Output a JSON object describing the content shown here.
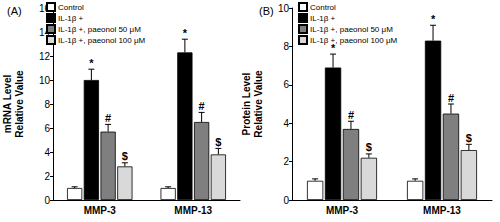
{
  "chart_data": [
    {
      "type": "bar",
      "title": "(A)",
      "y_label": "mRNA Level\nRelative Value",
      "categories": [
        "MMP-3",
        "MMP-13"
      ],
      "ylim": [
        0,
        16
      ],
      "yticks": [
        0,
        2,
        4,
        6,
        8,
        10,
        12,
        14,
        16
      ],
      "grid": false,
      "legend": "top-left",
      "series": [
        {
          "name": "Control",
          "color": "#ffffff",
          "values": [
            1.0,
            1.0
          ],
          "errors": [
            0.1,
            0.1
          ],
          "annotations": [
            null,
            null
          ]
        },
        {
          "name": "IL-1β +",
          "color": "#000000",
          "values": [
            10.0,
            12.3
          ],
          "errors": [
            0.9,
            1.1
          ],
          "annotations": [
            "*",
            "*"
          ]
        },
        {
          "name": "IL-1β +, paeonol 50 μM",
          "color": "#7f7f7f",
          "values": [
            5.7,
            6.5
          ],
          "errors": [
            0.6,
            0.8
          ],
          "annotations": [
            "#",
            "#"
          ]
        },
        {
          "name": "IL-1β +, paeonol 100 μM",
          "color": "#d9d9d9",
          "values": [
            2.8,
            3.8
          ],
          "errors": [
            0.3,
            0.5
          ],
          "annotations": [
            "$",
            "$"
          ]
        }
      ]
    },
    {
      "type": "bar",
      "title": "(B)",
      "y_label": "Protein Level\nRelative Value",
      "categories": [
        "MMP-3",
        "MMP-13"
      ],
      "ylim": [
        0,
        10
      ],
      "yticks": [
        0,
        2,
        4,
        6,
        8,
        10
      ],
      "grid": false,
      "legend": "top-left",
      "series": [
        {
          "name": "Control",
          "color": "#ffffff",
          "values": [
            1.0,
            1.0
          ],
          "errors": [
            0.1,
            0.1
          ],
          "annotations": [
            null,
            null
          ]
        },
        {
          "name": "IL-1β +",
          "color": "#000000",
          "values": [
            6.9,
            8.3
          ],
          "errors": [
            0.7,
            0.8
          ],
          "annotations": [
            "*",
            "*"
          ]
        },
        {
          "name": "IL-1β +, paeonol 50 μM",
          "color": "#7f7f7f",
          "values": [
            3.7,
            4.5
          ],
          "errors": [
            0.4,
            0.5
          ],
          "annotations": [
            "#",
            "#"
          ]
        },
        {
          "name": "IL-1β +, paeonol 100 μM",
          "color": "#d9d9d9",
          "values": [
            2.2,
            2.6
          ],
          "errors": [
            0.2,
            0.3
          ],
          "annotations": [
            "$",
            "$"
          ]
        }
      ]
    }
  ]
}
